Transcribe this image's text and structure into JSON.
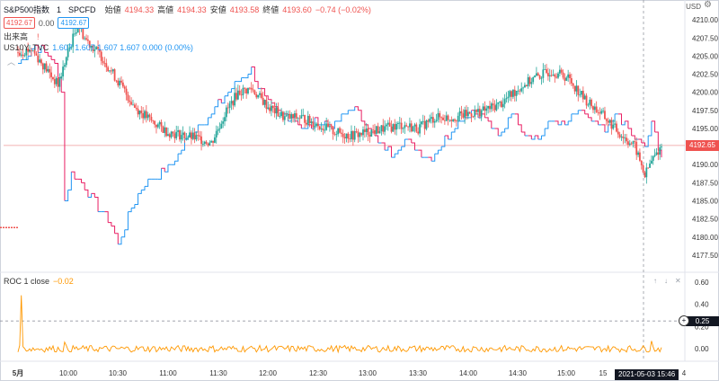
{
  "header": {
    "symbol": "S&P500指数",
    "interval": "1",
    "source": "SPCFD",
    "ohlc": [
      {
        "label": "始値",
        "value": "4194.33"
      },
      {
        "label": "高値",
        "value": "4194.33"
      },
      {
        "label": "安値",
        "value": "4193.58"
      },
      {
        "label": "終値",
        "value": "4193.60"
      }
    ],
    "change": "−0.74 (−0.02%)",
    "bid": "4192.67",
    "spread": "0.00",
    "ask": "4192.67",
    "volume_label": "出来高",
    "currency": "USD"
  },
  "overlay": {
    "name": "US10Y, TVC",
    "values": "1.607  1.607  1.607  1.607  0.000 (0.00%)"
  },
  "indicator": {
    "name": "ROC 1 close",
    "value": "−0.02"
  },
  "last_price_tag": "4192.65",
  "roc_tag": "0.25",
  "time_tag": "2021-05-03   15:46",
  "colors": {
    "up": "#26a69a",
    "down": "#ef5350",
    "overlay_down": "#e91e63",
    "overlay_up": "#2196f3",
    "roc": "#ff9800"
  },
  "chart_data": {
    "type": "candlestick",
    "title": "S&P500指数 · 1 · SPCFD",
    "y_axis": {
      "ticks": [
        4177.5,
        4180.0,
        4182.5,
        4185.0,
        4187.5,
        4190.0,
        4192.5,
        4195.0,
        4197.5,
        4200.0,
        4202.5,
        4205.0,
        4207.5,
        4210.0
      ],
      "range": [
        4175.5,
        4212.5
      ]
    },
    "x_axis": {
      "ticks": [
        "5月",
        "10:00",
        "10:30",
        "11:00",
        "11:30",
        "12:00",
        "12:30",
        "13:00",
        "13:30",
        "14:00",
        "14:30",
        "15:00",
        "15",
        "4"
      ]
    },
    "close_path": [
      {
        "t": 0,
        "v": 4205.5
      },
      {
        "t": 4,
        "v": 4206.0
      },
      {
        "t": 8,
        "v": 4203.5
      },
      {
        "t": 12,
        "v": 4201.0
      },
      {
        "t": 15,
        "v": 4205.5
      },
      {
        "t": 18,
        "v": 4209.5
      },
      {
        "t": 20,
        "v": 4207.5
      },
      {
        "t": 25,
        "v": 4205.0
      },
      {
        "t": 30,
        "v": 4201.5
      },
      {
        "t": 35,
        "v": 4198.0
      },
      {
        "t": 40,
        "v": 4196.0
      },
      {
        "t": 45,
        "v": 4194.5
      },
      {
        "t": 50,
        "v": 4194.0
      },
      {
        "t": 55,
        "v": 4193.5
      },
      {
        "t": 58,
        "v": 4193.0
      },
      {
        "t": 62,
        "v": 4197.0
      },
      {
        "t": 66,
        "v": 4200.0
      },
      {
        "t": 70,
        "v": 4200.5
      },
      {
        "t": 75,
        "v": 4198.0
      },
      {
        "t": 80,
        "v": 4196.5
      },
      {
        "t": 85,
        "v": 4196.5
      },
      {
        "t": 90,
        "v": 4195.5
      },
      {
        "t": 95,
        "v": 4194.5
      },
      {
        "t": 100,
        "v": 4194.0
      },
      {
        "t": 105,
        "v": 4194.5
      },
      {
        "t": 110,
        "v": 4195.0
      },
      {
        "t": 115,
        "v": 4195.5
      },
      {
        "t": 120,
        "v": 4195.0
      },
      {
        "t": 125,
        "v": 4196.5
      },
      {
        "t": 130,
        "v": 4196.5
      },
      {
        "t": 135,
        "v": 4197.0
      },
      {
        "t": 140,
        "v": 4197.5
      },
      {
        "t": 145,
        "v": 4198.5
      },
      {
        "t": 150,
        "v": 4200.5
      },
      {
        "t": 155,
        "v": 4202.0
      },
      {
        "t": 160,
        "v": 4203.0
      },
      {
        "t": 165,
        "v": 4202.0
      },
      {
        "t": 170,
        "v": 4199.0
      },
      {
        "t": 175,
        "v": 4197.0
      },
      {
        "t": 180,
        "v": 4194.5
      },
      {
        "t": 185,
        "v": 4192.5
      },
      {
        "t": 188,
        "v": 4188.5
      },
      {
        "t": 190,
        "v": 4190.5
      },
      {
        "t": 193,
        "v": 4192.6
      }
    ],
    "us10y_path": [
      {
        "t": 0,
        "v": 4204.0
      },
      {
        "t": 5,
        "v": 4206.5
      },
      {
        "t": 10,
        "v": 4205.0
      },
      {
        "t": 13,
        "v": 4200.5
      },
      {
        "t": 14,
        "v": 4185.0
      },
      {
        "t": 16,
        "v": 4189.0
      },
      {
        "t": 20,
        "v": 4187.0
      },
      {
        "t": 24,
        "v": 4184.0
      },
      {
        "t": 28,
        "v": 4181.5
      },
      {
        "t": 30,
        "v": 4179.0
      },
      {
        "t": 34,
        "v": 4184.0
      },
      {
        "t": 38,
        "v": 4187.5
      },
      {
        "t": 42,
        "v": 4188.5
      },
      {
        "t": 46,
        "v": 4190.0
      },
      {
        "t": 50,
        "v": 4193.0
      },
      {
        "t": 54,
        "v": 4195.5
      },
      {
        "t": 58,
        "v": 4197.0
      },
      {
        "t": 62,
        "v": 4199.5
      },
      {
        "t": 66,
        "v": 4201.5
      },
      {
        "t": 70,
        "v": 4203.0
      },
      {
        "t": 74,
        "v": 4199.0
      },
      {
        "t": 78,
        "v": 4197.0
      },
      {
        "t": 82,
        "v": 4196.5
      },
      {
        "t": 86,
        "v": 4195.0
      },
      {
        "t": 90,
        "v": 4196.0
      },
      {
        "t": 95,
        "v": 4195.5
      },
      {
        "t": 100,
        "v": 4198.0
      },
      {
        "t": 104,
        "v": 4196.0
      },
      {
        "t": 108,
        "v": 4193.0
      },
      {
        "t": 112,
        "v": 4191.5
      },
      {
        "t": 116,
        "v": 4193.5
      },
      {
        "t": 120,
        "v": 4192.0
      },
      {
        "t": 124,
        "v": 4191.0
      },
      {
        "t": 128,
        "v": 4193.5
      },
      {
        "t": 132,
        "v": 4196.0
      },
      {
        "t": 136,
        "v": 4197.5
      },
      {
        "t": 140,
        "v": 4196.5
      },
      {
        "t": 144,
        "v": 4193.5
      },
      {
        "t": 148,
        "v": 4197.5
      },
      {
        "t": 152,
        "v": 4194.5
      },
      {
        "t": 156,
        "v": 4193.5
      },
      {
        "t": 160,
        "v": 4196.0
      },
      {
        "t": 164,
        "v": 4195.5
      },
      {
        "t": 168,
        "v": 4197.5
      },
      {
        "t": 172,
        "v": 4196.0
      },
      {
        "t": 176,
        "v": 4194.5
      },
      {
        "t": 180,
        "v": 4197.0
      },
      {
        "t": 184,
        "v": 4194.0
      },
      {
        "t": 188,
        "v": 4192.5
      },
      {
        "t": 190,
        "v": 4195.5
      },
      {
        "t": 193,
        "v": 4191.0
      }
    ],
    "current_price": 4192.65,
    "indicator": {
      "type": "line",
      "name": "ROC 1 close",
      "y_ticks": [
        0.0,
        0.2,
        0.4,
        0.6
      ],
      "range": [
        -0.08,
        0.68
      ],
      "baseline": 0.0,
      "spike": {
        "t": 1,
        "v": 0.48
      },
      "marker": 0.25
    }
  }
}
